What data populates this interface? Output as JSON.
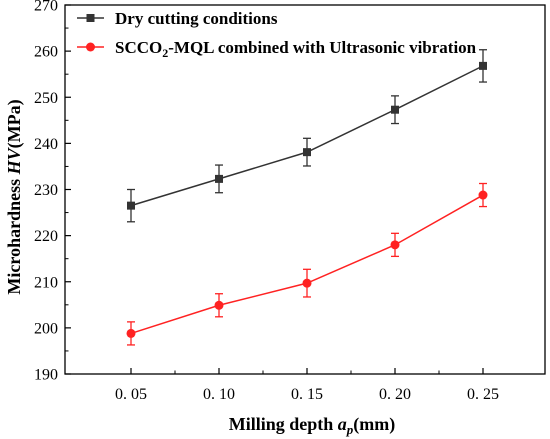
{
  "chart_data": {
    "type": "line",
    "xlabel_main": "Milling depth ",
    "xlabel_var": "a",
    "xlabel_sub": "p",
    "xlabel_unit": "(mm)",
    "ylabel_main": "Microhardness ",
    "ylabel_var": "HV",
    "ylabel_unit": "(MPa)",
    "categories": [
      "0. 05",
      "0. 10",
      "0. 15",
      "0. 20",
      "0. 25"
    ],
    "ylim": [
      190,
      270
    ],
    "yticks": [
      "190",
      "200",
      "210",
      "220",
      "230",
      "240",
      "250",
      "260",
      "270"
    ],
    "legend_position": "top-left",
    "grid": false,
    "series": [
      {
        "name": "Dry cutting conditions",
        "color": "#333333",
        "marker": "square",
        "values": [
          226.5,
          232.3,
          238.1,
          247.3,
          256.8
        ],
        "errors": [
          3.5,
          3.0,
          3.0,
          3.0,
          3.5
        ]
      },
      {
        "name_parts": [
          "SCCO",
          "2",
          "-MQL combined with Ultrasonic vibration"
        ],
        "color": "#ff2222",
        "marker": "circle",
        "values": [
          198.8,
          204.9,
          209.7,
          218.0,
          228.8
        ],
        "errors": [
          2.5,
          2.5,
          3.0,
          2.5,
          2.5
        ]
      }
    ]
  }
}
